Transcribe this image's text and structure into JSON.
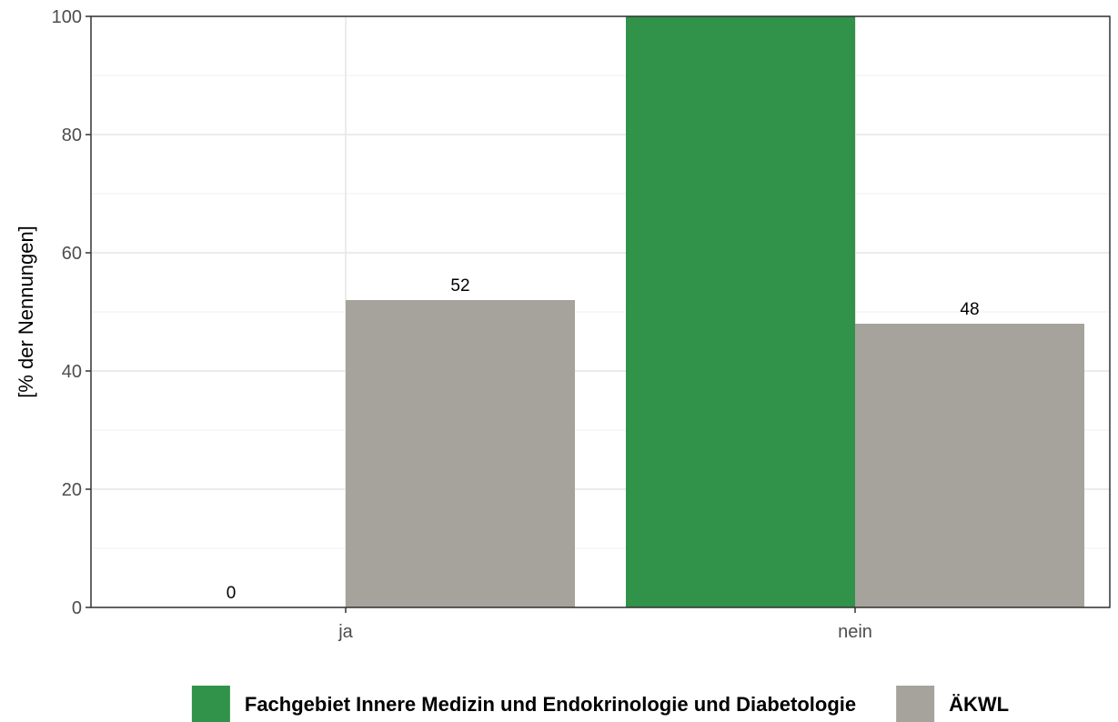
{
  "chart_data": {
    "type": "bar",
    "categories": [
      "ja",
      "nein"
    ],
    "series": [
      {
        "name": "Fachgebiet Innere Medizin und Endokrinologie und Diabetologie",
        "values": [
          0,
          100
        ],
        "color": "#31924A",
        "show_labels": [
          true,
          false
        ]
      },
      {
        "name": "ÄKWL",
        "values": [
          52,
          48
        ],
        "color": "#A5A39B",
        "show_labels": [
          true,
          true
        ]
      }
    ],
    "xlabel": "",
    "ylabel": "[% der Nennungen]",
    "ylim": [
      0,
      100
    ],
    "yticks": [
      0,
      20,
      40,
      60,
      80,
      100
    ],
    "grid": true,
    "legend_position": "bottom"
  }
}
